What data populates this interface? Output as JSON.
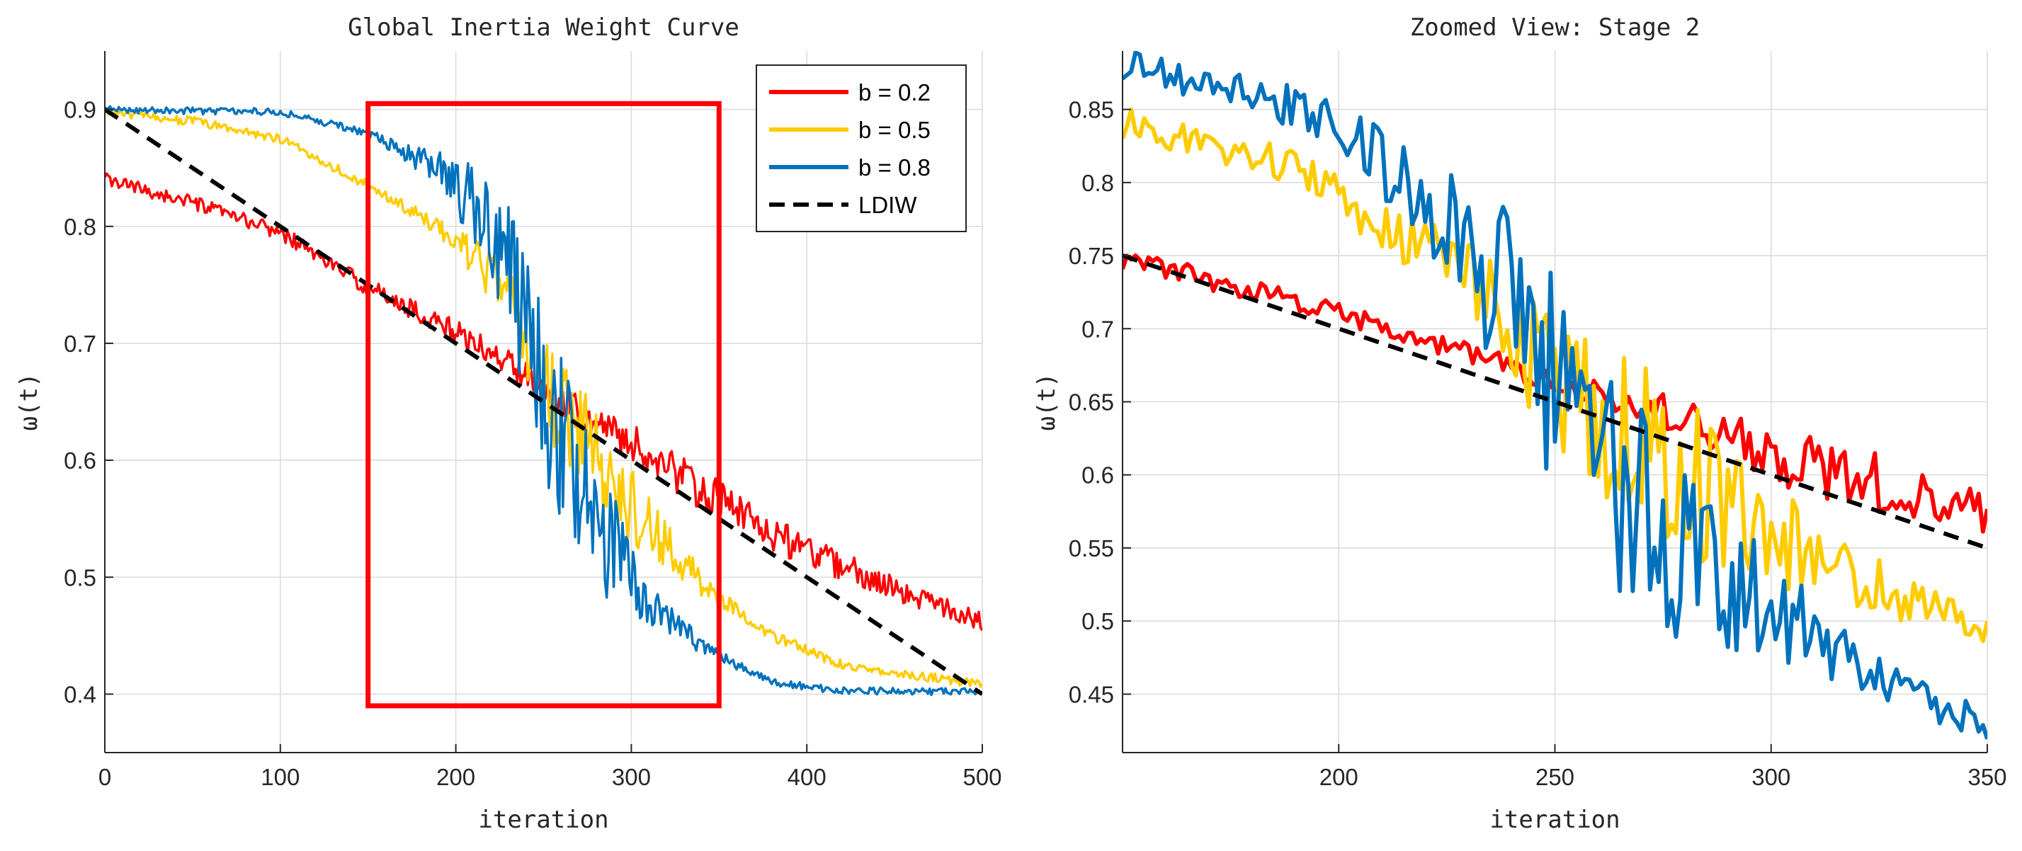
{
  "figure": {
    "panels": 2
  },
  "chart_data": [
    {
      "type": "line",
      "title": "Global Inertia Weight Curve",
      "xlabel": "iteration",
      "ylabel": "ω(t)",
      "xlim": [
        0,
        500
      ],
      "ylim": [
        0.35,
        0.95
      ],
      "xticks": [
        0,
        100,
        200,
        300,
        400,
        500
      ],
      "xtick_labels": [
        "0",
        "100",
        "200",
        "300",
        "400",
        "500"
      ],
      "yticks": [
        0.4,
        0.5,
        0.6,
        0.7,
        0.8,
        0.9
      ],
      "ytick_labels": [
        "0.4",
        "0.5",
        "0.6",
        "0.7",
        "0.8",
        "0.9"
      ],
      "grid": true,
      "legend_position": "top-right",
      "series": [
        {
          "name": "b = 0.2",
          "color": "#ff0000",
          "style": "solid",
          "noise_base": 0.006,
          "noise_peak": 0.012,
          "noise_center": 330,
          "noise_width": 120,
          "points": [
            [
              0,
              0.84
            ],
            [
              50,
              0.82
            ],
            [
              100,
              0.795
            ],
            [
              150,
              0.748
            ],
            [
              200,
              0.71
            ],
            [
              250,
              0.664
            ],
            [
              300,
              0.614
            ],
            [
              350,
              0.565
            ],
            [
              400,
              0.522
            ],
            [
              450,
              0.49
            ],
            [
              500,
              0.462
            ]
          ]
        },
        {
          "name": "b = 0.5",
          "color": "#ffcc00",
          "style": "solid",
          "noise_base": 0.004,
          "noise_peak": 0.04,
          "noise_center": 270,
          "noise_width": 55,
          "points": [
            [
              0,
              0.898
            ],
            [
              50,
              0.89
            ],
            [
              100,
              0.875
            ],
            [
              150,
              0.835
            ],
            [
              200,
              0.79
            ],
            [
              230,
              0.74
            ],
            [
              250,
              0.665
            ],
            [
              280,
              0.6
            ],
            [
              300,
              0.56
            ],
            [
              340,
              0.495
            ],
            [
              380,
              0.45
            ],
            [
              420,
              0.425
            ],
            [
              500,
              0.408
            ]
          ]
        },
        {
          "name": "b = 0.8",
          "color": "#0072bd",
          "style": "solid",
          "noise_base": 0.003,
          "noise_peak": 0.075,
          "noise_center": 255,
          "noise_width": 50,
          "points": [
            [
              0,
              0.9
            ],
            [
              100,
              0.898
            ],
            [
              150,
              0.88
            ],
            [
              200,
              0.84
            ],
            [
              230,
              0.76
            ],
            [
              250,
              0.66
            ],
            [
              270,
              0.57
            ],
            [
              300,
              0.5
            ],
            [
              340,
              0.44
            ],
            [
              380,
              0.41
            ],
            [
              420,
              0.403
            ],
            [
              500,
              0.402
            ]
          ]
        },
        {
          "name": "LDIW",
          "color": "#000000",
          "style": "dashed",
          "noise_base": 0,
          "noise_peak": 0,
          "noise_center": 0,
          "noise_width": 1,
          "points": [
            [
              0,
              0.9
            ],
            [
              500,
              0.4
            ]
          ]
        }
      ],
      "annotations": [
        {
          "type": "rectangle",
          "label": "zoom-region",
          "x": [
            150,
            350
          ],
          "y": [
            0.39,
            0.905
          ],
          "color": "#ff0000"
        }
      ]
    },
    {
      "type": "line",
      "title": "Zoomed View: Stage 2",
      "xlabel": "iteration",
      "ylabel": "ω(t)",
      "xlim": [
        150,
        350
      ],
      "ylim": [
        0.41,
        0.89
      ],
      "xticks": [
        200,
        250,
        300,
        350
      ],
      "xtick_labels": [
        "200",
        "250",
        "300",
        "350"
      ],
      "yticks": [
        0.45,
        0.5,
        0.55,
        0.6,
        0.65,
        0.7,
        0.75,
        0.8,
        0.85
      ],
      "ytick_labels": [
        "0.45",
        "0.5",
        "0.55",
        "0.6",
        "0.65",
        "0.7",
        "0.75",
        "0.8",
        "0.85"
      ],
      "grid": true,
      "series": [
        {
          "name": "b = 0.2",
          "color": "#ff0000",
          "style": "solid",
          "noise_base": 0.008,
          "noise_peak": 0.014,
          "noise_center": 320,
          "noise_width": 40,
          "points": [
            [
              150,
              0.748
            ],
            [
              200,
              0.71
            ],
            [
              250,
              0.664
            ],
            [
              280,
              0.64
            ],
            [
              300,
              0.614
            ],
            [
              330,
              0.59
            ],
            [
              350,
              0.57
            ]
          ]
        },
        {
          "name": "b = 0.5",
          "color": "#ffcc00",
          "style": "solid",
          "noise_base": 0.012,
          "noise_peak": 0.045,
          "noise_center": 270,
          "noise_width": 40,
          "points": [
            [
              150,
              0.84
            ],
            [
              170,
              0.825
            ],
            [
              190,
              0.81
            ],
            [
              210,
              0.77
            ],
            [
              230,
              0.74
            ],
            [
              250,
              0.665
            ],
            [
              280,
              0.6
            ],
            [
              300,
              0.56
            ],
            [
              320,
              0.53
            ],
            [
              350,
              0.49
            ]
          ]
        },
        {
          "name": "b = 0.8",
          "color": "#0072bd",
          "style": "solid",
          "noise_base": 0.012,
          "noise_peak": 0.07,
          "noise_center": 260,
          "noise_width": 40,
          "points": [
            [
              150,
              0.88
            ],
            [
              180,
              0.86
            ],
            [
              200,
              0.84
            ],
            [
              215,
              0.8
            ],
            [
              230,
              0.76
            ],
            [
              250,
              0.66
            ],
            [
              270,
              0.57
            ],
            [
              290,
              0.53
            ],
            [
              310,
              0.49
            ],
            [
              330,
              0.45
            ],
            [
              350,
              0.43
            ]
          ]
        },
        {
          "name": "LDIW",
          "color": "#000000",
          "style": "dashed",
          "noise_base": 0,
          "noise_peak": 0,
          "noise_center": 0,
          "noise_width": 1,
          "points": [
            [
              150,
              0.75
            ],
            [
              350,
              0.55
            ]
          ]
        }
      ]
    }
  ]
}
